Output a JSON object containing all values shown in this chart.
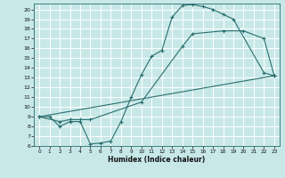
{
  "title": "",
  "xlabel": "Humidex (Indice chaleur)",
  "bg_color": "#c8e8e8",
  "grid_color": "#ffffff",
  "line_color": "#2a6e6e",
  "xlim": [
    -0.5,
    23.5
  ],
  "ylim": [
    6,
    20.6
  ],
  "xticks": [
    0,
    1,
    2,
    3,
    4,
    5,
    6,
    7,
    8,
    9,
    10,
    11,
    12,
    13,
    14,
    15,
    16,
    17,
    18,
    19,
    20,
    21,
    22,
    23
  ],
  "yticks": [
    6,
    7,
    8,
    9,
    10,
    11,
    12,
    13,
    14,
    15,
    16,
    17,
    18,
    19,
    20
  ],
  "curve1_x": [
    0,
    1,
    2,
    3,
    4,
    5,
    6,
    7,
    8,
    9,
    10,
    11,
    12,
    13,
    14,
    15,
    16,
    17,
    18,
    19,
    22,
    23
  ],
  "curve1_y": [
    9,
    9,
    8,
    8.5,
    8.5,
    6.2,
    6.3,
    6.5,
    8.5,
    11,
    13.3,
    15.2,
    15.8,
    19.2,
    20.4,
    20.5,
    20.3,
    20.0,
    19.5,
    19.0,
    13.5,
    13.2
  ],
  "curve2_x": [
    0,
    2,
    3,
    4,
    5,
    10,
    14,
    15,
    18,
    20,
    22,
    23
  ],
  "curve2_y": [
    9,
    8.5,
    8.7,
    8.7,
    8.7,
    10.5,
    16.2,
    17.5,
    17.8,
    17.8,
    17.0,
    13.2
  ],
  "curve3_x": [
    0,
    23
  ],
  "curve3_y": [
    9,
    13.2
  ]
}
